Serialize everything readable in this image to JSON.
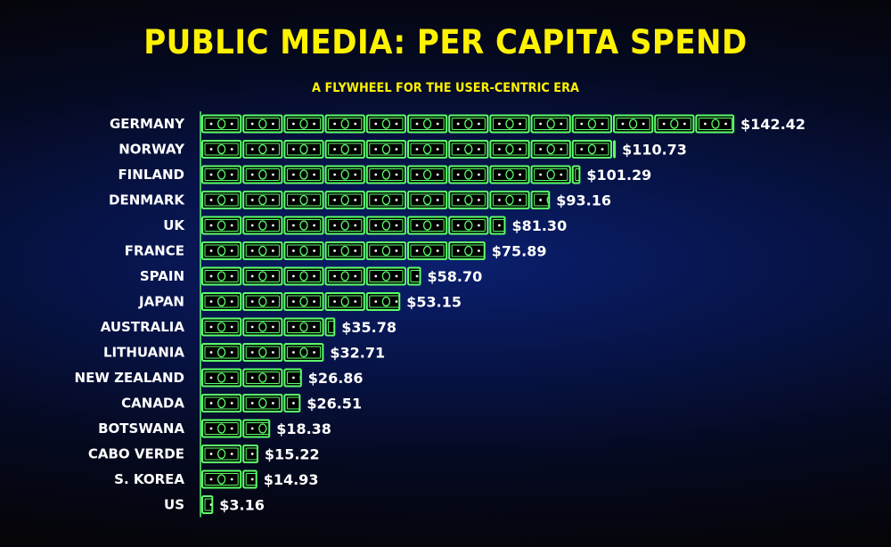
{
  "title": "PUBLIC MEDIA: PER CAPITA SPEND",
  "subtitle": "A FLYWHEEL FOR THE USER-CENTRIC ERA",
  "colors": {
    "title": "#fff200",
    "bill_outline": "#5cff6a",
    "text": "#ffffff"
  },
  "chart_data": {
    "type": "bar",
    "orientation": "horizontal",
    "bar_style": "dollar-bill pictogram",
    "categories": [
      "GERMANY",
      "NORWAY",
      "FINLAND",
      "DENMARK",
      "UK",
      "FRANCE",
      "SPAIN",
      "JAPAN",
      "AUSTRALIA",
      "LITHUANIA",
      "NEW ZEALAND",
      "CANADA",
      "BOTSWANA",
      "CABO VERDE",
      "S. KOREA",
      "US"
    ],
    "values": [
      142.42,
      110.73,
      101.29,
      93.16,
      81.3,
      75.89,
      58.7,
      53.15,
      35.78,
      32.71,
      26.86,
      26.51,
      18.38,
      15.22,
      14.93,
      3.16
    ],
    "value_labels": [
      "$142.42",
      "$110.73",
      "$101.29",
      "$93.16",
      "$81.30",
      "$75.89",
      "$58.70",
      "$53.15",
      "$35.78",
      "$32.71",
      "$26.86",
      "$26.51",
      "$18.38",
      "$15.22",
      "$14.93",
      "$3.16"
    ],
    "unit_per_bill": 11,
    "title": "PUBLIC MEDIA: PER CAPITA SPEND",
    "subtitle": "A FLYWHEEL FOR THE USER-CENTRIC ERA",
    "xlabel": "",
    "ylabel": "",
    "grid": false,
    "legend": "none"
  }
}
